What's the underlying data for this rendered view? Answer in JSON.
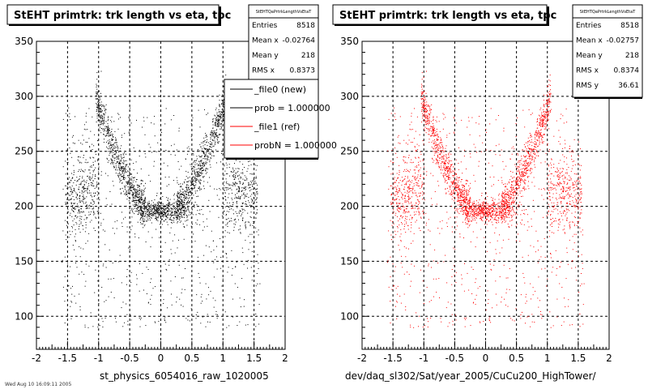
{
  "chart_data": [
    {
      "type": "scatter",
      "title": "StEHT primtrk: trk length vs eta, tpc",
      "xlabel": "st_physics_6054016_raw_1020005",
      "ylabel": "",
      "xlim": [
        -2,
        2
      ],
      "ylim": [
        70,
        350
      ],
      "x_ticks": [
        "-2",
        "-1.5",
        "-1",
        "-0.5",
        "0",
        "0.5",
        "1",
        "1.5",
        "2"
      ],
      "y_ticks": [
        "100",
        "150",
        "200",
        "250",
        "300",
        "350"
      ],
      "grid": true,
      "color": "#000000",
      "series": [
        {
          "name": "_file0 (new)",
          "marker_color": "#000000"
        }
      ],
      "stats": {
        "header": "StEHTQaPrtrkLengthVsEtaT",
        "rows": [
          {
            "label": "Entries",
            "value": "8518"
          },
          {
            "label": "Mean x",
            "value": "-0.02764"
          },
          {
            "label": "Mean y",
            "value": "218"
          },
          {
            "label": "RMS x",
            "value": "0.8373"
          }
        ]
      },
      "legend": {
        "position": "top-right",
        "entries": [
          {
            "label": "_file0 (new)",
            "color": "#000000"
          },
          {
            "label": "prob = 1.000000",
            "color": "#000000"
          },
          {
            "label": "_file1 (ref)",
            "color": "#ff0000"
          },
          {
            "label": "probN = 1.000000",
            "color": "#ff0000"
          }
        ]
      }
    },
    {
      "type": "scatter",
      "title": "StEHT primtrk: trk length vs eta, tpc",
      "xlabel": "dev/daq_sl302/Sat/year_2005/CuCu200_HighTower/",
      "ylabel": "",
      "xlim": [
        -2,
        2
      ],
      "ylim": [
        70,
        350
      ],
      "x_ticks": [
        "-2",
        "-1.5",
        "-1",
        "-0.5",
        "0",
        "0.5",
        "1",
        "1.5",
        "2"
      ],
      "y_ticks": [
        "100",
        "150",
        "200",
        "250",
        "300",
        "350"
      ],
      "grid": true,
      "color": "#ff0000",
      "series": [
        {
          "name": "_file1 (ref)",
          "marker_color": "#ff0000"
        }
      ],
      "stats": {
        "header": "StEHTQaPrtrkLengthVsEtaT",
        "rows": [
          {
            "label": "Entries",
            "value": "8518"
          },
          {
            "label": "Mean x",
            "value": "-0.02757"
          },
          {
            "label": "Mean y",
            "value": "218"
          },
          {
            "label": "RMS x",
            "value": "0.8374"
          },
          {
            "label": "RMS y",
            "value": "36.61"
          }
        ]
      }
    }
  ],
  "footer_left": "Wed Aug 10 16:09:11 2005"
}
